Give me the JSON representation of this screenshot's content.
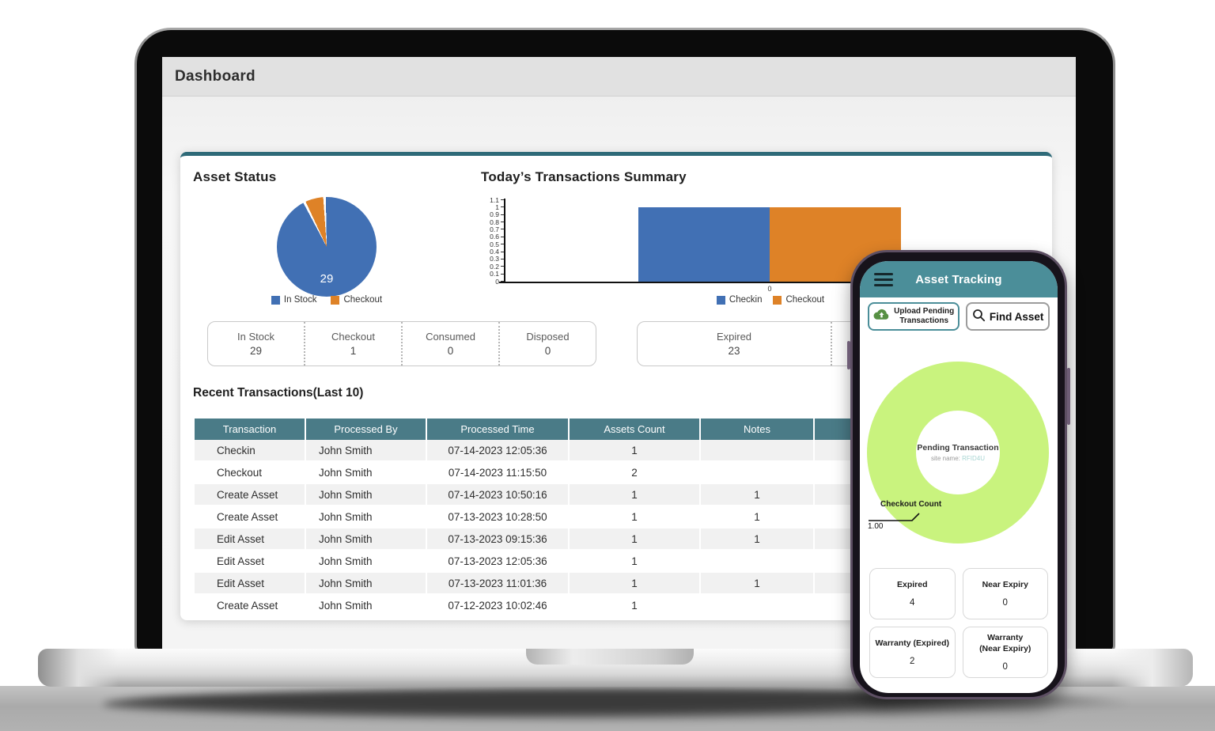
{
  "dashboard": {
    "title": "Dashboard",
    "asset_status_heading": "Asset Status",
    "transactions_heading": "Today’s Transactions Summary",
    "pie_center_label": "29",
    "summary_cards": [
      {
        "items": [
          {
            "label": "In Stock",
            "value": "29"
          },
          {
            "label": "Checkout",
            "value": "1"
          },
          {
            "label": "Consumed",
            "value": "0"
          },
          {
            "label": "Disposed",
            "value": "0"
          }
        ]
      },
      {
        "items": [
          {
            "label": "Expired",
            "value": "23"
          },
          {
            "label": "",
            "value": ""
          }
        ]
      }
    ],
    "recent_heading": "Recent Transactions(Last 10)",
    "table": {
      "headers": [
        "Transaction",
        "Processed By",
        "Processed Time",
        "Assets Count",
        "Notes"
      ],
      "rows": [
        [
          "Checkin",
          "John Smith",
          "07-14-2023 12:05:36",
          "1",
          ""
        ],
        [
          "Checkout",
          "John Smith",
          "07-14-2023 11:15:50",
          "2",
          ""
        ],
        [
          "Create Asset",
          "John Smith",
          "07-14-2023 10:50:16",
          "1",
          "1"
        ],
        [
          "Create Asset",
          "John Smith",
          "07-13-2023 10:28:50",
          "1",
          "1"
        ],
        [
          "Edit Asset",
          "John Smith",
          "07-13-2023 09:15:36",
          "1",
          "1"
        ],
        [
          "Edit Asset",
          "John Smith",
          "07-13-2023 12:05:36",
          "1",
          ""
        ],
        [
          "Edit Asset",
          "John Smith",
          "07-13-2023 11:01:36",
          "1",
          "1"
        ],
        [
          "Create Asset",
          "John Smith",
          "07-12-2023 10:02:46",
          "1",
          ""
        ]
      ]
    }
  },
  "phone": {
    "app_title": "Asset Tracking",
    "upload_button_label": "Upload Pending\nTransactions",
    "find_button_label": "Find Asset",
    "donut_center_title": "Pending Transaction",
    "donut_center_subtitle_label": "site name:",
    "donut_center_subtitle_value": "RFID4U",
    "callout_label": "Checkout Count",
    "callout_value": "1.00",
    "stat_cards": [
      {
        "label": "Expired",
        "value": "4"
      },
      {
        "label": "Near Expiry",
        "value": "0"
      },
      {
        "label": "Warranty (Expired)",
        "value": "2"
      },
      {
        "label": "Warranty\n(Near Expiry)",
        "value": "0"
      }
    ]
  },
  "chart_data": [
    {
      "type": "pie",
      "title": "Asset Status",
      "labels": [
        "In Stock",
        "Checkout"
      ],
      "values": [
        29,
        1
      ],
      "colors": [
        "#4170b4",
        "#de8227"
      ],
      "center_label": "29",
      "legend_position": "bottom"
    },
    {
      "type": "bar",
      "title": "Today's Transactions Summary",
      "categories": [
        "0"
      ],
      "series": [
        {
          "name": "Checkin",
          "values": [
            1
          ],
          "color": "#4170b4"
        },
        {
          "name": "Checkout",
          "values": [
            1
          ],
          "color": "#de8227"
        }
      ],
      "ylim": [
        0,
        1.1
      ],
      "yticks": [
        0,
        0.1,
        0.2,
        0.3,
        0.4,
        0.5,
        0.6,
        0.7,
        0.8,
        0.9,
        1,
        1.1
      ],
      "grid": false,
      "legend_position": "bottom"
    },
    {
      "type": "pie",
      "subtype": "donut",
      "title": "Pending Transaction",
      "labels": [
        "Checkout Count"
      ],
      "values": [
        1.0
      ],
      "colors": [
        "#c9f37e"
      ],
      "center_text": [
        "Pending Transaction",
        "site name: RFID4U"
      ],
      "annotation": {
        "label": "Checkout Count",
        "value": "1.00"
      }
    }
  ],
  "colors": {
    "table_header_teal": "#4a7b87",
    "panel_accent_teal": "#2e6a78",
    "phone_header_teal": "#4b8e99",
    "series_blue": "#4170b4",
    "series_orange": "#de8227",
    "donut_green": "#c9f37e",
    "upload_icon_green": "#579043"
  }
}
